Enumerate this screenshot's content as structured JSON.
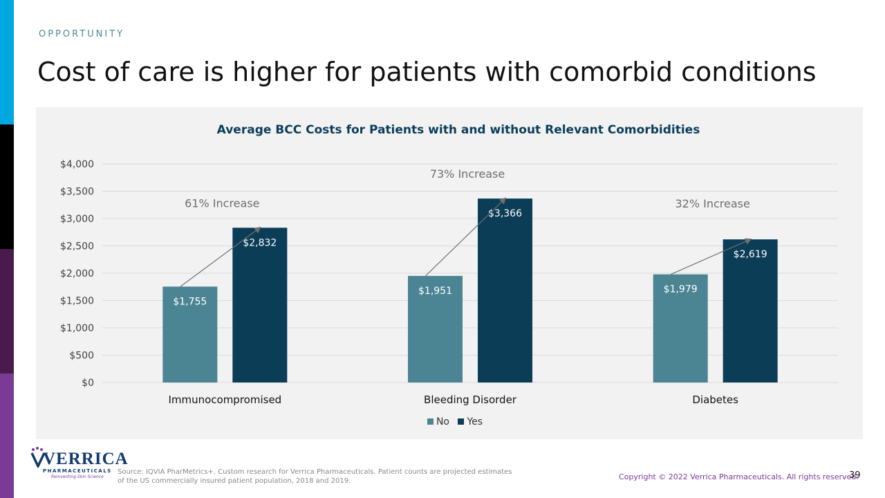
{
  "slide": {
    "eyebrow": "OPPORTUNITY",
    "title": "Cost of care is higher for patients with comorbid conditions",
    "source": "Source: IQVIA PharMetrics+. Custom research for Verrica Pharmaceuticals.  Patient counts are projected estimates of the US commercially insured patient population, 2018 and 2019.",
    "copyright": "Copyright © 2022 Verrica Pharmaceuticals. All rights reserved.",
    "page_number": "39",
    "logo": {
      "word": "VERRICA",
      "sub": "PHARMACEUTICALS",
      "tagline": "Reinventing Skin Science"
    },
    "side_bar_colors": [
      "#00a7e1",
      "#000000",
      "#4a1a4d",
      "#7a3b96"
    ]
  },
  "chart_data": {
    "type": "bar",
    "title": "Average BCC Costs for Patients with and without Relevant Comorbidities",
    "categories": [
      "Immunocompromised",
      "Bleeding Disorder",
      "Diabetes"
    ],
    "series": [
      {
        "name": "No",
        "values": [
          1755,
          1951,
          1979
        ],
        "labels": [
          "$1,755",
          "$1,951",
          "$1,979"
        ],
        "color": "#4b8593"
      },
      {
        "name": "Yes",
        "values": [
          2832,
          3366,
          2619
        ],
        "labels": [
          "$2,832",
          "$3,366",
          "$2,619"
        ],
        "color": "#0b3d57"
      }
    ],
    "annotations": [
      "61% Increase",
      "73% Increase",
      "32% Increase"
    ],
    "ylim": [
      0,
      4000
    ],
    "yticks": [
      0,
      500,
      1000,
      1500,
      2000,
      2500,
      3000,
      3500,
      4000
    ],
    "ytick_labels": [
      "$0",
      "$500",
      "$1,000",
      "$1,500",
      "$2,000",
      "$2,500",
      "$3,000",
      "$3,500",
      "$4,000"
    ],
    "xlabel": "",
    "ylabel": "",
    "grid": true,
    "legend": "bottom-center"
  }
}
